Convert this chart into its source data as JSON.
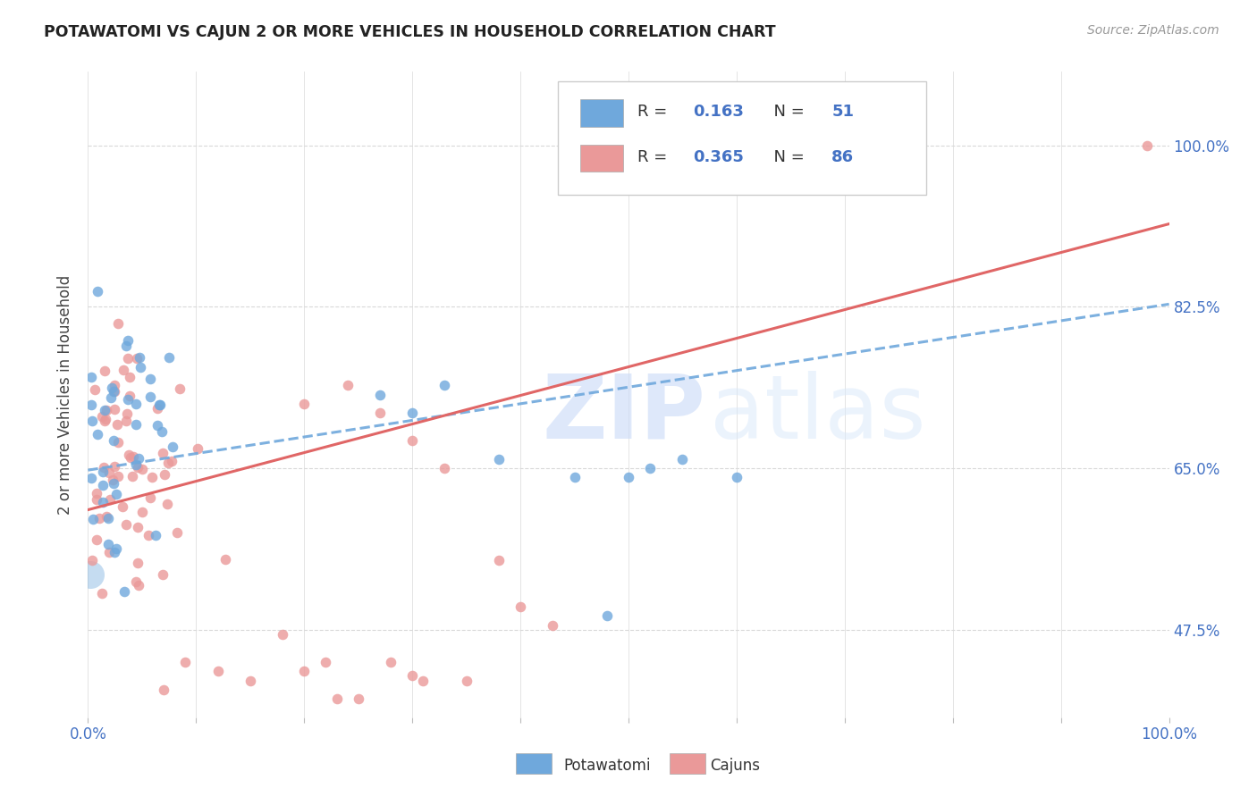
{
  "title": "POTAWATOMI VS CAJUN 2 OR MORE VEHICLES IN HOUSEHOLD CORRELATION CHART",
  "source": "Source: ZipAtlas.com",
  "ylabel": "2 or more Vehicles in Household",
  "yticks": [
    "47.5%",
    "65.0%",
    "82.5%",
    "100.0%"
  ],
  "ytick_vals": [
    0.475,
    0.65,
    0.825,
    1.0
  ],
  "xlim": [
    0.0,
    1.0
  ],
  "ylim": [
    0.38,
    1.08
  ],
  "legend_R1": "0.163",
  "legend_N1": "51",
  "legend_R2": "0.365",
  "legend_N2": "86",
  "potawatomi_color": "#6fa8dc",
  "cajun_color": "#ea9999",
  "cajun_line_color": "#e06666",
  "background_color": "#ffffff",
  "grid_color": "#d9d9d9",
  "potawatomi_trend_y_start": 0.648,
  "potawatomi_trend_y_end": 0.828,
  "cajun_trend_y_start": 0.605,
  "cajun_trend_y_end": 0.915
}
